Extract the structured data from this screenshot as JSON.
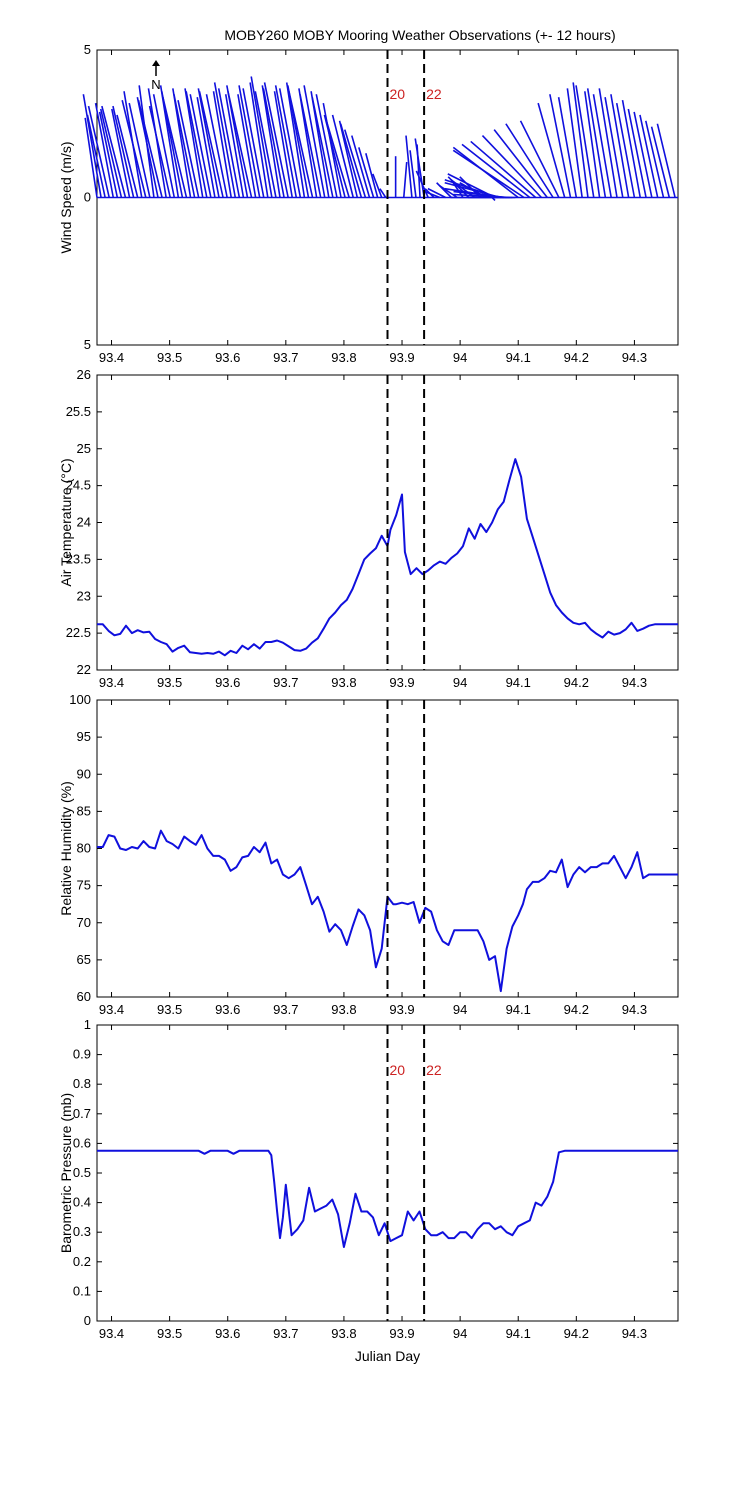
{
  "figure": {
    "title": "MOBY260 MOBY Mooring Weather Observations (+- 12 hours)",
    "north_label": "N",
    "x_axis_label": "Julian Day",
    "overlay_label_partial": "...ian Da..."
  },
  "chart_data": [
    {
      "id": "wind",
      "type": "line",
      "subtype": "wind-stick-plot",
      "ylabel": "Wind Speed (m/s)",
      "xlim": [
        93.375,
        94.375
      ],
      "ylim": [
        -5,
        5
      ],
      "x_ticks": [
        93.4,
        93.5,
        93.6,
        93.7,
        93.8,
        93.9,
        94,
        94.1,
        94.2,
        94.3
      ],
      "x_tick_labels": [
        "93.4",
        "93.5",
        "93.6",
        "93.7",
        "93.8",
        "93.9",
        "94",
        "94.1",
        "94.2",
        "94.3"
      ],
      "y_ticks": [
        5,
        0,
        -5
      ],
      "y_tick_labels": [
        "5",
        "0",
        "5"
      ],
      "grid": false,
      "markers": [
        {
          "x": 93.875,
          "label": "20"
        },
        {
          "x": 93.938,
          "label": "22"
        }
      ],
      "x": [
        93.375,
        93.382,
        93.389,
        93.396,
        93.403,
        93.41,
        93.417,
        93.424,
        93.431,
        93.438,
        93.445,
        93.452,
        93.459,
        93.466,
        93.473,
        93.48,
        93.487,
        93.494,
        93.501,
        93.508,
        93.515,
        93.522,
        93.529,
        93.536,
        93.543,
        93.55,
        93.557,
        93.564,
        93.571,
        93.578,
        93.585,
        93.592,
        93.599,
        93.606,
        93.613,
        93.62,
        93.627,
        93.634,
        93.641,
        93.648,
        93.655,
        93.662,
        93.669,
        93.676,
        93.683,
        93.69,
        93.697,
        93.704,
        93.711,
        93.718,
        93.725,
        93.732,
        93.739,
        93.746,
        93.753,
        93.76,
        93.767,
        93.774,
        93.781,
        93.788,
        93.795,
        93.802,
        93.809,
        93.816,
        93.823,
        93.83,
        93.837,
        93.844,
        93.851,
        93.858,
        93.865,
        93.872,
        93.889,
        93.903,
        93.917,
        93.924,
        93.931,
        93.938,
        93.945,
        93.955,
        93.965,
        93.975,
        93.985,
        93.995,
        94.005,
        94.015,
        94.025,
        94.035,
        94.045,
        94.055,
        94.06,
        94.065,
        94.07,
        94.075,
        94.08,
        94.085,
        94.09,
        94.095,
        94.1,
        94.11,
        94.12,
        94.13,
        94.14,
        94.15,
        94.16,
        94.17,
        94.18,
        94.19,
        94.2,
        94.21,
        94.22,
        94.23,
        94.24,
        94.25,
        94.26,
        94.27,
        94.28,
        94.29,
        94.3,
        94.31,
        94.32,
        94.33,
        94.34,
        94.35,
        94.36,
        94.37
      ],
      "u": [
        0.4,
        0.6,
        0.6,
        0.7,
        0.6,
        0.6,
        0.7,
        0.8,
        0.6,
        0.7,
        0.7,
        0.6,
        0.8,
        0.7,
        0.5,
        0.7,
        0.8,
        0.6,
        0.7,
        0.7,
        0.6,
        0.7,
        0.8,
        0.6,
        0.7,
        0.7,
        0.6,
        0.7,
        0.7,
        0.6,
        0.7,
        0.8,
        0.7,
        0.6,
        0.7,
        0.7,
        0.6,
        0.7,
        0.8,
        0.6,
        0.7,
        0.7,
        0.6,
        0.7,
        0.7,
        0.6,
        0.7,
        0.8,
        0.6,
        0.7,
        0.7,
        0.6,
        0.7,
        0.8,
        0.6,
        0.7,
        0.7,
        0.6,
        0.7,
        0.7,
        0.6,
        0.7,
        0.8,
        0.7,
        0.6,
        0.7,
        0.7,
        0.6,
        0.5,
        0.4,
        0.3,
        0.2,
        0.0,
        -0.1,
        0.2,
        0.2,
        0.1,
        0.3,
        0.4,
        0.3,
        0.5,
        0.6,
        0.5,
        0.6,
        0.4,
        0.7,
        0.8,
        0.7,
        0.9,
        -0.1,
        1.6,
        1.8,
        1.9,
        2.0,
        1.8,
        1.9,
        2.1,
        1.6,
        2.2,
        2.4,
        2.3,
        2.2,
        2.0,
        1.8,
        1.6,
        1.3,
        0.9,
        0.7,
        0.6,
        0.5,
        0.5,
        0.6,
        0.5,
        0.6,
        0.6,
        0.6,
        0.6,
        0.6,
        0.6,
        0.6,
        0.6,
        0.6,
        0.6,
        0.6,
        0.6,
        0.6
      ],
      "v": [
        2.7,
        3.5,
        2.8,
        3.1,
        3.2,
        2.9,
        3.0,
        3.1,
        3.0,
        3.1,
        2.8,
        3.6,
        3.3,
        3.2,
        3.8,
        3.4,
        3.3,
        3.7,
        3.1,
        3.5,
        3.8,
        3.6,
        3.4,
        3.7,
        3.5,
        3.3,
        3.7,
        3.6,
        3.5,
        3.4,
        3.7,
        3.6,
        3.5,
        3.6,
        3.9,
        3.7,
        3.5,
        3.8,
        3.6,
        3.5,
        3.8,
        3.7,
        3.9,
        4.1,
        3.6,
        3.8,
        3.7,
        3.9,
        3.6,
        3.8,
        3.7,
        3.9,
        3.8,
        3.6,
        3.7,
        3.5,
        3.8,
        3.6,
        3.4,
        3.5,
        3.2,
        2.8,
        2.7,
        2.8,
        2.6,
        2.5,
        2.3,
        2.1,
        1.7,
        1.5,
        0.8,
        0.3,
        1.4,
        1.2,
        2.1,
        1.6,
        1.8,
        2.0,
        0.9,
        0.3,
        0.2,
        0.3,
        0.5,
        0.4,
        0.6,
        0.7,
        0.6,
        0.7,
        0.5,
        -0.1,
        0.8,
        0.6,
        0.5,
        0.3,
        0.2,
        0.1,
        0.0,
        0.0,
        1.7,
        1.6,
        1.8,
        1.9,
        2.1,
        2.3,
        2.5,
        2.6,
        3.2,
        3.5,
        3.4,
        3.7,
        3.9,
        3.8,
        3.6,
        3.7,
        3.5,
        3.7,
        3.4,
        3.5,
        3.2,
        3.3,
        3.0,
        2.9,
        2.8,
        2.6,
        2.4,
        2.5
      ]
    },
    {
      "id": "air-temp",
      "type": "line",
      "ylabel": "Air Temperature (°C)",
      "xlim": [
        93.375,
        94.375
      ],
      "ylim": [
        22,
        26
      ],
      "x_ticks": [
        93.4,
        93.5,
        93.6,
        93.7,
        93.8,
        93.9,
        94,
        94.1,
        94.2,
        94.3
      ],
      "x_tick_labels": [
        "93.4",
        "93.5",
        "93.6",
        "93.7",
        "93.8",
        "93.9",
        "94",
        "94.1",
        "94.2",
        "94.3"
      ],
      "y_ticks": [
        22,
        22.5,
        23,
        23.5,
        24,
        24.5,
        25,
        25.5,
        26
      ],
      "y_tick_labels": [
        "22",
        "22.5",
        "23",
        "23.5",
        "24",
        "24.5",
        "25",
        "25.5",
        "26"
      ],
      "grid": false,
      "markers": [
        {
          "x": 93.875
        },
        {
          "x": 93.938
        }
      ],
      "x": [
        93.375,
        93.385,
        93.395,
        93.405,
        93.415,
        93.425,
        93.435,
        93.445,
        93.455,
        93.465,
        93.475,
        93.485,
        93.495,
        93.505,
        93.515,
        93.525,
        93.535,
        93.545,
        93.555,
        93.565,
        93.575,
        93.585,
        93.595,
        93.605,
        93.615,
        93.625,
        93.635,
        93.645,
        93.655,
        93.665,
        93.675,
        93.685,
        93.695,
        93.705,
        93.715,
        93.725,
        93.735,
        93.745,
        93.755,
        93.765,
        93.775,
        93.785,
        93.795,
        93.805,
        93.815,
        93.825,
        93.835,
        93.845,
        93.855,
        93.865,
        93.875,
        93.88,
        93.89,
        93.9,
        93.905,
        93.91,
        93.915,
        93.925,
        93.935,
        93.945,
        93.955,
        93.965,
        93.975,
        93.985,
        93.995,
        94.005,
        94.015,
        94.025,
        94.035,
        94.045,
        94.055,
        94.065,
        94.075,
        94.085,
        94.095,
        94.105,
        94.115,
        94.125,
        94.135,
        94.145,
        94.155,
        94.165,
        94.175,
        94.185,
        94.195,
        94.205,
        94.215,
        94.225,
        94.235,
        94.245,
        94.255,
        94.265,
        94.275,
        94.285,
        94.295,
        94.305,
        94.315,
        94.325,
        94.335,
        94.345,
        94.355,
        94.365,
        94.375
      ],
      "values": [
        22.62,
        22.62,
        22.53,
        22.47,
        22.49,
        22.6,
        22.5,
        22.54,
        22.51,
        22.52,
        22.42,
        22.38,
        22.35,
        22.25,
        22.3,
        22.33,
        22.24,
        22.23,
        22.22,
        22.23,
        22.22,
        22.25,
        22.2,
        22.26,
        22.23,
        22.33,
        22.28,
        22.35,
        22.29,
        22.38,
        22.38,
        22.4,
        22.37,
        22.32,
        22.27,
        22.26,
        22.29,
        22.37,
        22.43,
        22.56,
        22.7,
        22.78,
        22.88,
        22.95,
        23.1,
        23.3,
        23.5,
        23.58,
        23.65,
        23.82,
        23.68,
        23.9,
        24.1,
        24.38,
        23.6,
        23.45,
        23.3,
        23.38,
        23.3,
        23.35,
        23.42,
        23.47,
        23.44,
        23.52,
        23.58,
        23.68,
        23.92,
        23.78,
        23.98,
        23.87,
        24.0,
        24.18,
        24.28,
        24.58,
        24.86,
        24.62,
        24.05,
        23.8,
        23.55,
        23.3,
        23.05,
        22.88,
        22.78,
        22.7,
        22.64,
        22.62,
        22.64,
        22.55,
        22.49,
        22.44,
        22.52,
        22.48,
        22.5,
        22.55,
        22.64,
        22.53,
        22.56,
        22.6,
        22.62,
        22.62,
        22.62,
        22.62,
        22.62
      ],
      "series": [
        {
          "values_ref": "values"
        }
      ]
    },
    {
      "id": "humidity",
      "type": "line",
      "ylabel": "Relative Humidity (%)",
      "xlim": [
        93.375,
        94.375
      ],
      "ylim": [
        60,
        100
      ],
      "x_ticks": [
        93.4,
        93.5,
        93.6,
        93.7,
        93.8,
        93.9,
        94,
        94.1,
        94.2,
        94.3
      ],
      "x_tick_labels": [
        "93.4",
        "93.5",
        "93.6",
        "93.7",
        "93.8",
        "93.9",
        "94",
        "94.1",
        "94.2",
        "94.3"
      ],
      "y_ticks": [
        60,
        65,
        70,
        75,
        80,
        85,
        90,
        95,
        100
      ],
      "y_tick_labels": [
        "60",
        "65",
        "70",
        "75",
        "80",
        "85",
        "90",
        "95",
        "100"
      ],
      "grid": false,
      "markers": [
        {
          "x": 93.875
        },
        {
          "x": 93.938
        }
      ],
      "x": [
        93.375,
        93.385,
        93.395,
        93.405,
        93.415,
        93.425,
        93.435,
        93.445,
        93.455,
        93.465,
        93.475,
        93.485,
        93.495,
        93.505,
        93.515,
        93.525,
        93.535,
        93.545,
        93.555,
        93.565,
        93.575,
        93.585,
        93.595,
        93.605,
        93.615,
        93.625,
        93.635,
        93.645,
        93.655,
        93.665,
        93.675,
        93.685,
        93.695,
        93.705,
        93.715,
        93.725,
        93.735,
        93.745,
        93.755,
        93.765,
        93.775,
        93.785,
        93.795,
        93.805,
        93.815,
        93.825,
        93.835,
        93.845,
        93.855,
        93.865,
        93.875,
        93.885,
        93.89,
        93.9,
        93.91,
        93.92,
        93.93,
        93.94,
        93.95,
        93.96,
        93.97,
        93.98,
        93.99,
        94.0,
        94.01,
        94.02,
        94.03,
        94.04,
        94.05,
        94.06,
        94.07,
        94.08,
        94.09,
        94.1,
        94.108,
        94.115,
        94.125,
        94.135,
        94.145,
        94.155,
        94.165,
        94.175,
        94.185,
        94.195,
        94.205,
        94.215,
        94.225,
        94.235,
        94.245,
        94.255,
        94.265,
        94.275,
        94.285,
        94.295,
        94.305,
        94.315,
        94.325,
        94.335,
        94.345,
        94.355,
        94.365,
        94.375
      ],
      "values": [
        80.2,
        80.2,
        81.8,
        81.6,
        80.0,
        79.8,
        80.2,
        80.0,
        81.0,
        80.2,
        80.0,
        82.4,
        81.0,
        80.6,
        80.0,
        81.6,
        81.0,
        80.5,
        81.8,
        80.0,
        79.0,
        79.0,
        78.5,
        77.0,
        77.5,
        78.8,
        79.0,
        80.2,
        79.5,
        80.8,
        78.0,
        78.5,
        76.5,
        76.0,
        76.5,
        77.5,
        75.0,
        72.5,
        73.5,
        71.5,
        68.8,
        69.8,
        69.0,
        67.0,
        69.5,
        71.8,
        71.0,
        69.0,
        64.0,
        66.5,
        73.5,
        72.5,
        72.5,
        72.7,
        72.5,
        72.8,
        70.0,
        72.0,
        71.5,
        69.0,
        67.5,
        67.0,
        69.0,
        69.0,
        69.0,
        69.0,
        69.0,
        67.5,
        65.0,
        65.5,
        60.8,
        66.5,
        69.5,
        71.0,
        72.5,
        74.5,
        75.5,
        75.5,
        76.0,
        77.0,
        76.8,
        78.5,
        74.8,
        76.5,
        77.5,
        76.8,
        77.5,
        77.5,
        78.0,
        78.0,
        79.0,
        77.5,
        76.0,
        77.5,
        79.5,
        76.0,
        76.5,
        76.5,
        76.5,
        76.5,
        76.5,
        76.5
      ],
      "series": [
        {
          "values_ref": "values"
        }
      ]
    },
    {
      "id": "pressure",
      "type": "line",
      "ylabel": "Barometric Pressure (mb)",
      "xlabel": "Julian Day",
      "xlim": [
        93.375,
        94.375
      ],
      "ylim": [
        0,
        1
      ],
      "x_ticks": [
        93.4,
        93.5,
        93.6,
        93.7,
        93.8,
        93.9,
        94,
        94.1,
        94.2,
        94.3
      ],
      "x_tick_labels": [
        "93.4",
        "93.5",
        "93.6",
        "93.7",
        "93.8",
        "93.9",
        "94",
        "94.1",
        "94.2",
        "94.3"
      ],
      "y_ticks": [
        0,
        0.1,
        0.2,
        0.3,
        0.4,
        0.5,
        0.6,
        0.7,
        0.8,
        0.9,
        1
      ],
      "y_tick_labels": [
        "0",
        "0.1",
        "0.2",
        "0.3",
        "0.4",
        "0.5",
        "0.6",
        "0.7",
        "0.8",
        "0.9",
        "1"
      ],
      "grid": false,
      "markers": [
        {
          "x": 93.875,
          "label": "20"
        },
        {
          "x": 93.938,
          "label": "22"
        }
      ],
      "x": [
        93.375,
        93.45,
        93.52,
        93.55,
        93.56,
        93.57,
        93.6,
        93.61,
        93.62,
        93.67,
        93.675,
        93.68,
        93.685,
        93.69,
        93.695,
        93.7,
        93.71,
        93.72,
        93.73,
        93.74,
        93.75,
        93.76,
        93.77,
        93.78,
        93.79,
        93.8,
        93.81,
        93.82,
        93.83,
        93.84,
        93.85,
        93.86,
        93.87,
        93.88,
        93.89,
        93.9,
        93.91,
        93.92,
        93.93,
        93.94,
        93.95,
        93.96,
        93.97,
        93.98,
        93.99,
        94.0,
        94.01,
        94.02,
        94.03,
        94.04,
        94.05,
        94.06,
        94.07,
        94.08,
        94.09,
        94.1,
        94.11,
        94.12,
        94.13,
        94.14,
        94.15,
        94.16,
        94.17,
        94.18,
        94.19,
        94.2,
        94.3,
        94.375
      ],
      "values": [
        0.575,
        0.575,
        0.575,
        0.575,
        0.565,
        0.575,
        0.575,
        0.565,
        0.575,
        0.575,
        0.56,
        0.47,
        0.37,
        0.28,
        0.35,
        0.46,
        0.29,
        0.31,
        0.34,
        0.45,
        0.37,
        0.38,
        0.39,
        0.41,
        0.36,
        0.25,
        0.33,
        0.43,
        0.37,
        0.37,
        0.35,
        0.29,
        0.33,
        0.27,
        0.28,
        0.29,
        0.37,
        0.34,
        0.37,
        0.31,
        0.29,
        0.29,
        0.3,
        0.28,
        0.28,
        0.3,
        0.3,
        0.28,
        0.31,
        0.33,
        0.33,
        0.31,
        0.32,
        0.3,
        0.29,
        0.32,
        0.33,
        0.34,
        0.4,
        0.39,
        0.42,
        0.47,
        0.57,
        0.575,
        0.575,
        0.575,
        0.575,
        0.575
      ],
      "series": [
        {
          "values_ref": "values"
        }
      ]
    }
  ]
}
